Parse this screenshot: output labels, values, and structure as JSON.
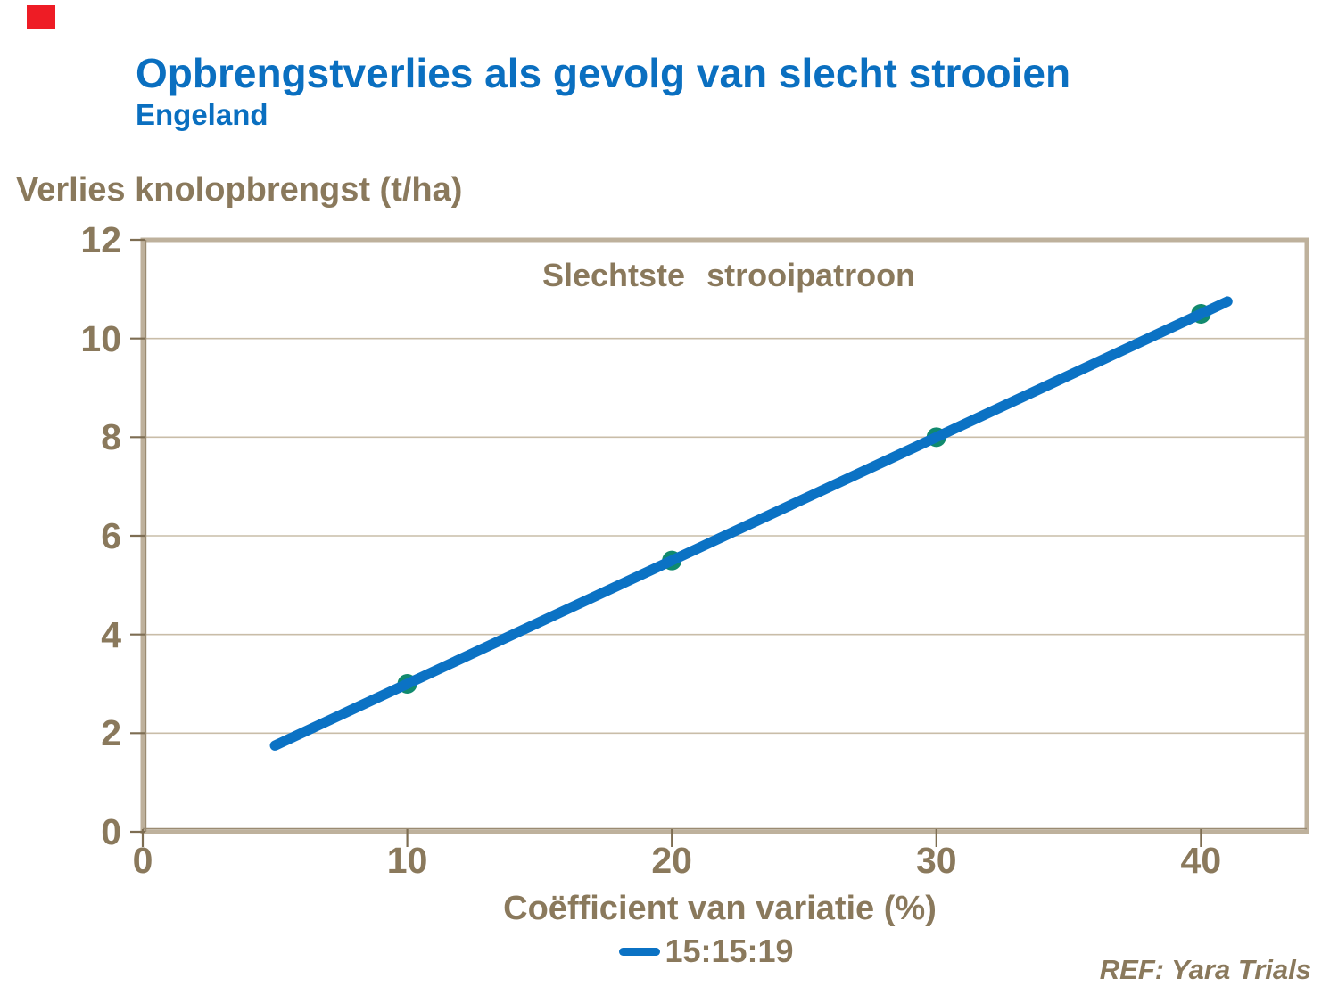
{
  "page": {
    "title": "Opbrengstverlies als gevolg van slecht strooien",
    "subtitle": "Engeland",
    "ref_note": "REF: Yara Trials"
  },
  "colors": {
    "title_blue": "#0a6fc0",
    "line_blue": "#0b72c4",
    "marker_teal": "#118a6e",
    "text_taupe": "#8a795c",
    "tick_taupe": "#7d6d52",
    "grid_taupe": "#c9bda8",
    "frame_taupe": "#beb19c",
    "frame_inner_taupe": "#9a8b72",
    "red_square": "#ee1c25"
  },
  "chart_data": {
    "type": "line",
    "annotation": "Slechtste strooipatroon",
    "ylabel": "Verlies knolopbrengst (t/ha)",
    "xlabel": "Coëfficient van variatie (%)",
    "xlim": [
      0,
      44
    ],
    "ylim": [
      0,
      12
    ],
    "xticks": [
      0,
      10,
      20,
      30,
      40
    ],
    "yticks": [
      0,
      2,
      4,
      6,
      8,
      10,
      12
    ],
    "grid": "horizontal",
    "legend_position": "bottom",
    "series": [
      {
        "name": "15:15:19",
        "x": [
          10,
          20,
          30,
          40
        ],
        "y": [
          3,
          5.5,
          8,
          10.5
        ],
        "line_start": [
          5,
          1.75
        ],
        "line_end": [
          41,
          10.75
        ]
      }
    ]
  }
}
